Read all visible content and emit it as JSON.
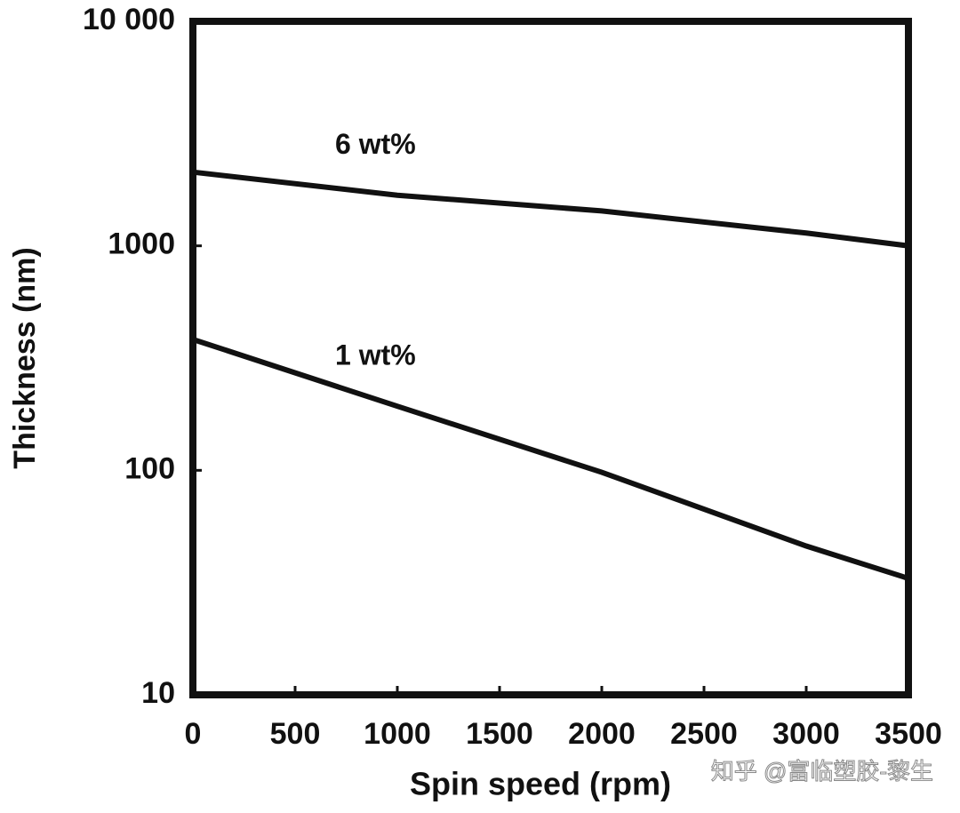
{
  "chart_data": {
    "type": "line",
    "ylabel": "Thickness (nm)",
    "xlabel": "Spin speed (rpm)",
    "log_y": true,
    "x": [
      0,
      1000,
      2000,
      3000,
      3500
    ],
    "series": [
      {
        "name": "6 wt%",
        "color": "#111111",
        "values": [
          2130,
          1680,
          1430,
          1140,
          1000
        ]
      },
      {
        "name": "1 wt%",
        "color": "#111111",
        "values": [
          383,
          193,
          98,
          46,
          33
        ]
      }
    ],
    "xlim": [
      0,
      3500
    ],
    "xticks": [
      0,
      500,
      1000,
      1500,
      2000,
      2500,
      3000,
      3500
    ],
    "ylim": [
      10,
      10000
    ],
    "yticks": [
      {
        "value": 10,
        "label": "10"
      },
      {
        "value": 100,
        "label": "100"
      },
      {
        "value": 1000,
        "label": "1000"
      },
      {
        "value": 10000,
        "label": "10 000"
      }
    ],
    "watermark": "知乎 @富临塑胶-黎生"
  }
}
